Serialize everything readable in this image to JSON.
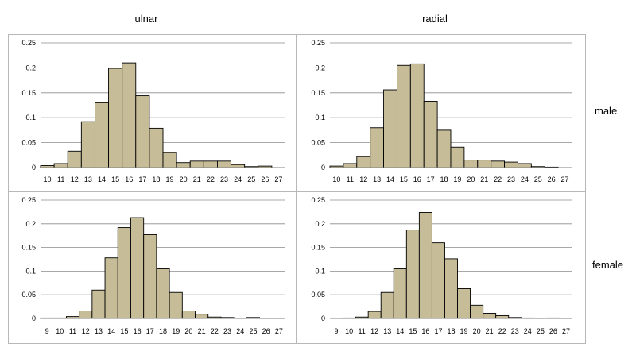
{
  "col_titles": [
    "ulnar",
    "radial"
  ],
  "row_titles": [
    "male",
    "female"
  ],
  "colors": {
    "bar_fill": "#c6bc98",
    "bar_stroke": "#000000",
    "grid": "#8c8c8c",
    "panel_border": "#b8b8b8"
  },
  "chart_data": [
    {
      "type": "bar",
      "panel": "ulnar-male",
      "categories": [
        "10",
        "11",
        "12",
        "13",
        "14",
        "15",
        "16",
        "17",
        "18",
        "19",
        "20",
        "21",
        "22",
        "23",
        "24",
        "25",
        "26",
        "27"
      ],
      "values": [
        0.004,
        0.008,
        0.033,
        0.092,
        0.13,
        0.199,
        0.21,
        0.144,
        0.079,
        0.03,
        0.01,
        0.013,
        0.013,
        0.013,
        0.006,
        0.002,
        0.003,
        0.0
      ],
      "yticks": [
        "0",
        "0.05",
        "0.1",
        "0.15",
        "0.2",
        "0.25"
      ],
      "ylim": [
        0,
        0.25
      ],
      "grid": true
    },
    {
      "type": "bar",
      "panel": "radial-male",
      "categories": [
        "10",
        "11",
        "12",
        "13",
        "14",
        "15",
        "16",
        "17",
        "18",
        "19",
        "20",
        "21",
        "22",
        "23",
        "24",
        "25",
        "26",
        "27"
      ],
      "values": [
        0.003,
        0.008,
        0.022,
        0.08,
        0.156,
        0.205,
        0.208,
        0.133,
        0.075,
        0.041,
        0.015,
        0.015,
        0.013,
        0.011,
        0.008,
        0.002,
        0.001,
        0.0
      ],
      "yticks": [
        "0",
        "0.05",
        "0.1",
        "0.15",
        "0.2",
        "0.25"
      ],
      "ylim": [
        0,
        0.25
      ],
      "grid": true
    },
    {
      "type": "bar",
      "panel": "ulnar-female",
      "categories": [
        "9",
        "10",
        "11",
        "12",
        "13",
        "14",
        "15",
        "16",
        "17",
        "18",
        "19",
        "20",
        "21",
        "22",
        "23",
        "24",
        "25",
        "26",
        "27"
      ],
      "values": [
        0.001,
        0.001,
        0.004,
        0.016,
        0.06,
        0.128,
        0.192,
        0.213,
        0.177,
        0.105,
        0.055,
        0.016,
        0.009,
        0.003,
        0.002,
        0.0,
        0.002,
        0.0,
        0.0
      ],
      "yticks": [
        "0",
        "0.05",
        "0.1",
        "0.15",
        "0.2",
        "0.25"
      ],
      "ylim": [
        0,
        0.25
      ],
      "grid": true
    },
    {
      "type": "bar",
      "panel": "radial-female",
      "categories": [
        "9",
        "10",
        "11",
        "12",
        "13",
        "14",
        "15",
        "16",
        "17",
        "18",
        "19",
        "20",
        "21",
        "22",
        "23",
        "24",
        "25",
        "26",
        "27"
      ],
      "values": [
        0.0,
        0.001,
        0.003,
        0.015,
        0.055,
        0.105,
        0.187,
        0.224,
        0.16,
        0.126,
        0.063,
        0.028,
        0.011,
        0.006,
        0.002,
        0.001,
        0.0,
        0.001,
        0.0
      ],
      "yticks": [
        "0",
        "0.05",
        "0.1",
        "0.15",
        "0.2",
        "0.25"
      ],
      "ylim": [
        0,
        0.25
      ],
      "grid": true
    }
  ]
}
